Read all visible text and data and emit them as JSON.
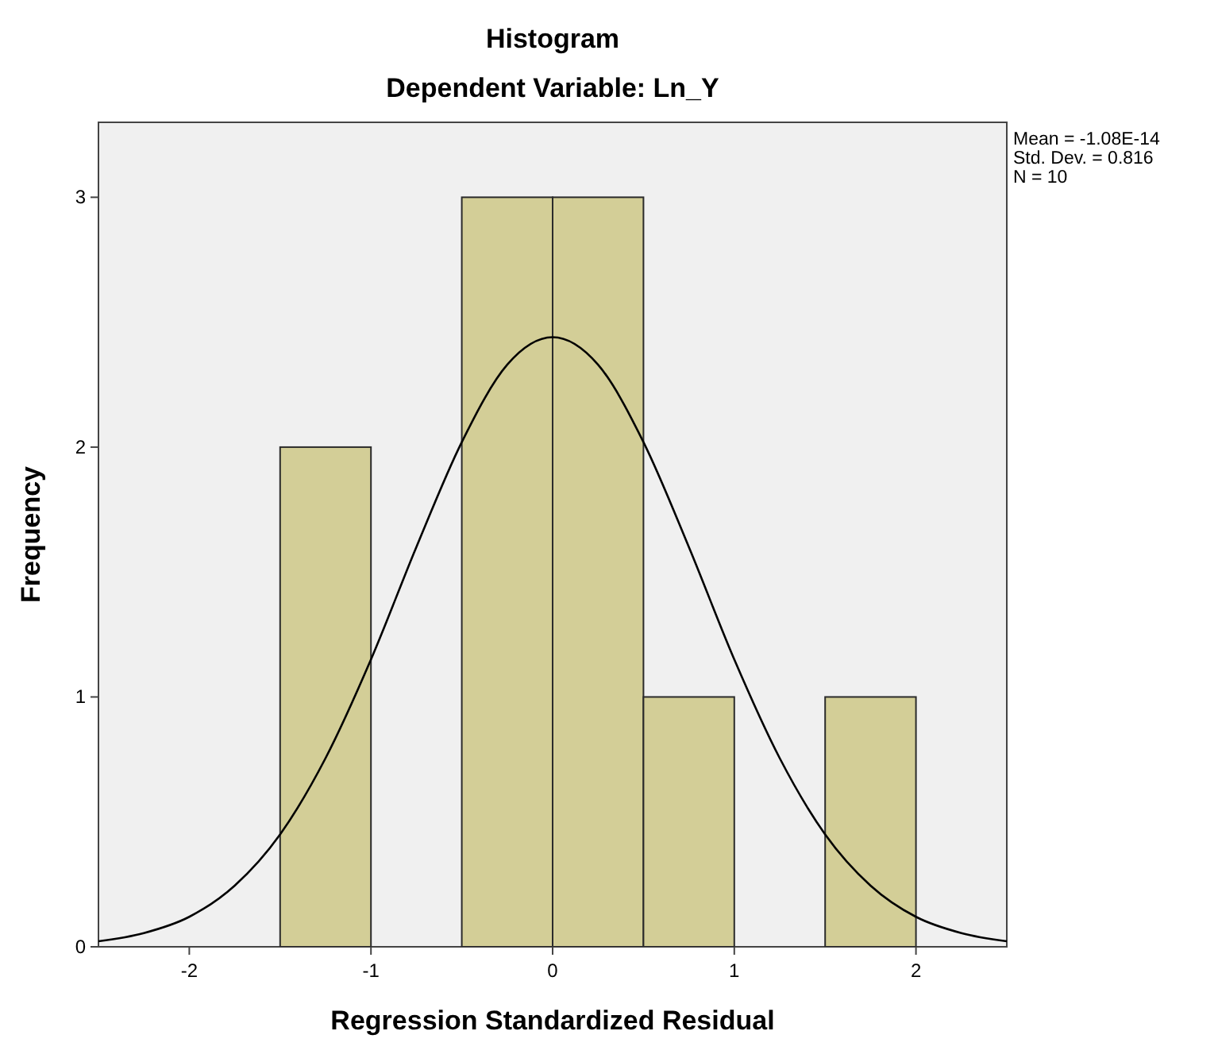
{
  "chart_data": {
    "type": "histogram",
    "title": "Histogram",
    "subtitle": "Dependent Variable: Ln_Y",
    "xlabel": "Regression Standardized Residual",
    "ylabel": "Frequency",
    "bins": [
      -1.5,
      -1,
      -0.5,
      0,
      0.5,
      1,
      1.5,
      2
    ],
    "values": [
      2,
      0,
      3,
      3,
      1,
      0,
      1
    ],
    "color": "#d3ce97",
    "series": [
      {
        "type": "line",
        "color": "#000000",
        "x": [
          -2.5,
          -2.25,
          -2,
          -1.75,
          -1.5,
          -1.25,
          -1,
          -0.75,
          -0.5,
          -0.25,
          0,
          0.25,
          0.5,
          0.75,
          1,
          1.25,
          1.5,
          1.75,
          2,
          2.25,
          2.5
        ],
        "values": [
          0.022,
          0.055,
          0.12,
          0.245,
          0.45,
          0.755,
          1.15,
          1.6,
          2.02,
          2.33,
          2.44,
          2.33,
          2.02,
          1.6,
          1.15,
          0.755,
          0.45,
          0.245,
          0.12,
          0.055,
          0.022
        ]
      }
    ],
    "xlim": [
      -2.5,
      2.5
    ],
    "xticks": [
      -2,
      -1,
      0,
      1,
      2
    ],
    "ylim": [
      0,
      3.3
    ],
    "yticks": [
      0,
      1,
      2,
      3
    ],
    "annotations": [
      "Mean = -1.08E-14",
      "Std. Dev. = 0.816",
      "N = 10"
    ]
  }
}
